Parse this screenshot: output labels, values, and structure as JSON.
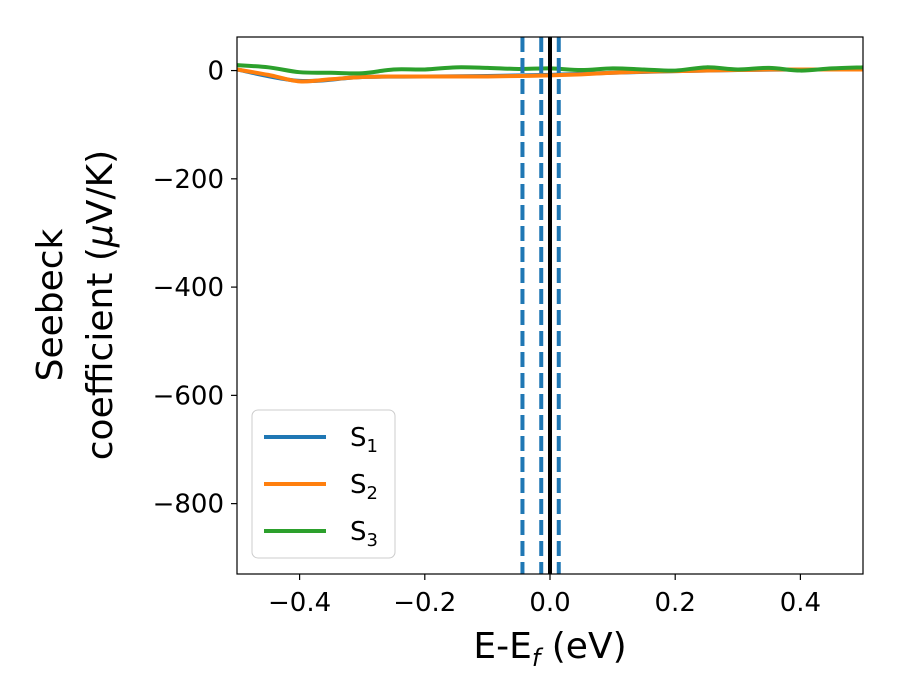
{
  "chart_data": {
    "type": "line",
    "xlabel": "E-E",
    "xlabel_sub": "f",
    "xlabel_unit": " (eV)",
    "ylabel_line1": "Seebeck",
    "ylabel_line2_a": "coefficient  (",
    "ylabel_line2_mu": "μ",
    "ylabel_line2_b": "V/K)",
    "xlim": [
      -0.5,
      0.5
    ],
    "ylim": [
      -930,
      62
    ],
    "xticks": [
      -0.4,
      -0.2,
      0.0,
      0.2,
      0.4
    ],
    "xtick_labels": [
      "−0.4",
      "−0.2",
      "0.0",
      "0.2",
      "0.4"
    ],
    "yticks": [
      0,
      -200,
      -400,
      -600,
      -800
    ],
    "ytick_labels": [
      "0",
      "−200",
      "−400",
      "−600",
      "−800"
    ],
    "grid": false,
    "legend_position": "lower-left",
    "series": [
      {
        "name": "S",
        "sub": "1",
        "color": "#1f77b4",
        "x": [
          -0.5,
          -0.4,
          -0.3,
          -0.2,
          -0.1,
          0.0,
          0.1,
          0.2,
          0.3,
          0.4,
          0.5
        ],
        "y": [
          2,
          -19,
          -12,
          -11,
          -10,
          -8,
          -4,
          -1,
          1,
          2,
          2
        ]
      },
      {
        "name": "S",
        "sub": "2",
        "color": "#ff7f0e",
        "x": [
          -0.5,
          -0.45,
          -0.4,
          -0.35,
          -0.3,
          -0.25,
          -0.2,
          -0.15,
          -0.1,
          -0.05,
          0.0,
          0.05,
          0.1,
          0.15,
          0.2,
          0.25,
          0.3,
          0.35,
          0.4,
          0.45,
          0.5
        ],
        "y": [
          2,
          -8,
          -20,
          -16,
          -12,
          -11,
          -11,
          -11,
          -11,
          -10,
          -9,
          -7,
          -4,
          -2,
          -1,
          0,
          1,
          2,
          2,
          2,
          2
        ]
      },
      {
        "name": "S",
        "sub": "3",
        "color": "#2ca02c",
        "x": [
          -0.5,
          -0.45,
          -0.4,
          -0.35,
          -0.3,
          -0.25,
          -0.2,
          -0.15,
          -0.1,
          -0.05,
          0.0,
          0.05,
          0.1,
          0.15,
          0.2,
          0.25,
          0.3,
          0.35,
          0.4,
          0.45,
          0.5
        ],
        "y": [
          10,
          6,
          -3,
          -4,
          -5,
          2,
          2,
          6,
          5,
          3,
          4,
          1,
          4,
          2,
          0,
          6,
          2,
          5,
          0,
          4,
          6
        ]
      }
    ],
    "vlines": [
      {
        "x": -0.044,
        "color": "#1f77b4",
        "style": "dashed"
      },
      {
        "x": -0.014,
        "color": "#1f77b4",
        "style": "dashed"
      },
      {
        "x": 0.014,
        "color": "#1f77b4",
        "style": "dashed"
      },
      {
        "x": 0.0,
        "color": "#000000",
        "style": "solid"
      }
    ]
  }
}
